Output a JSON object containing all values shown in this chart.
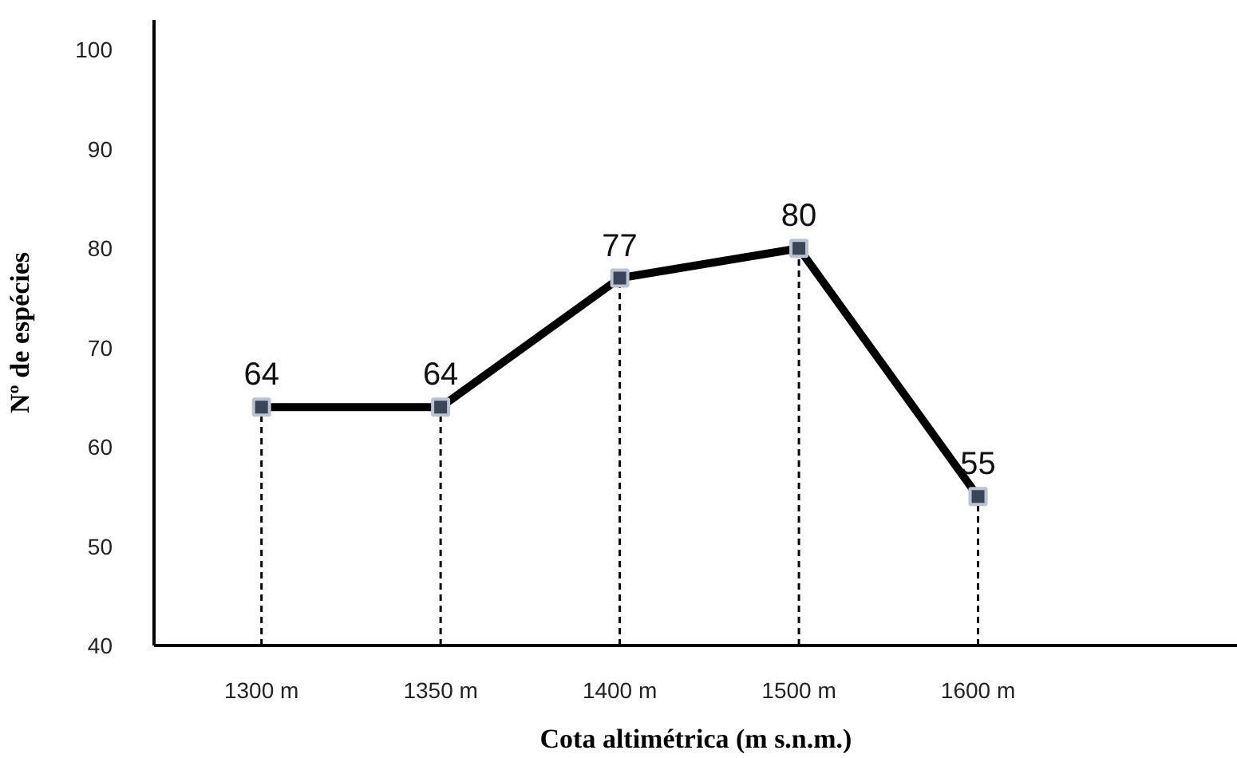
{
  "chart_data": {
    "type": "line",
    "xlabel": "Cota altimétrica (m s.n.m.)",
    "ylabel": "Nº de espécies",
    "categories": [
      "1300 m",
      "1350 m",
      "1400 m",
      "1500 m",
      "1600 m"
    ],
    "series": [
      {
        "color": "#000000",
        "values": [
          64,
          64,
          77,
          80,
          55
        ]
      }
    ],
    "ylim": [
      40,
      103
    ],
    "yticks": [
      40,
      50,
      60,
      70,
      80,
      90,
      100
    ],
    "ref_lines": [
      {
        "axis": "x",
        "value": "1300 m",
        "color": "#000000",
        "line_style": "dashed"
      },
      {
        "axis": "x",
        "value": "1350 m",
        "color": "#000000",
        "line_style": "dashed"
      },
      {
        "axis": "x",
        "value": "1400 m",
        "color": "#000000",
        "line_style": "dashed"
      },
      {
        "axis": "x",
        "value": "1500 m",
        "color": "#000000",
        "line_style": "dashed"
      },
      {
        "axis": "x",
        "value": "1600 m",
        "color": "#000000",
        "line_style": "dashed"
      }
    ],
    "data_labels": true,
    "marker": "square",
    "line_style": "solid"
  }
}
